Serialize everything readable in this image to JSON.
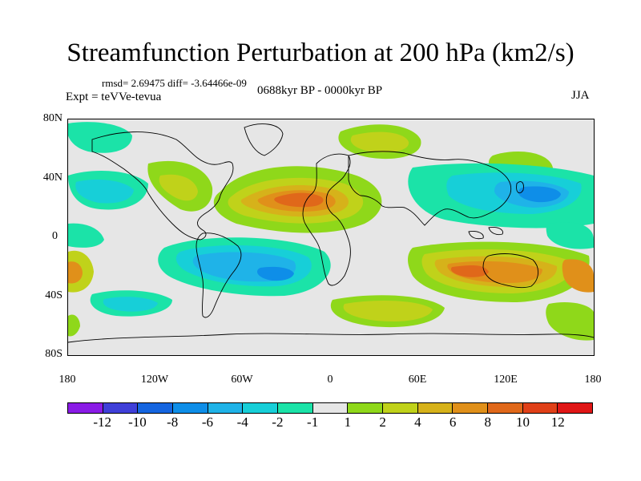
{
  "header": {
    "title": "Streamfunction Perturbation at 200 hPa (km2/s)",
    "stats": "rmsd= 2.69475 diff= -3.64466e-09",
    "experiment": "Expt = teVVe-tevua",
    "period": "0688kyr BP - 0000kyr BP",
    "season": "JJA"
  },
  "map": {
    "projection": "cylindrical-equidistant",
    "lat_labels": [
      "80N",
      "40N",
      "0",
      "40S",
      "80S"
    ],
    "lon_labels": [
      "180",
      "120W",
      "60W",
      "0",
      "60E",
      "120E",
      "180"
    ],
    "background_color": "#e6e6e6"
  },
  "colorbar": {
    "colors": [
      "#8a1be6",
      "#3f3fd8",
      "#1565e0",
      "#0e8ee8",
      "#1fb3e8",
      "#17cfd8",
      "#1be3a8",
      "#e6e6e6",
      "#8fd81a",
      "#c0d21a",
      "#d6b21a",
      "#e0901a",
      "#e0681a",
      "#e04018",
      "#e01616"
    ],
    "labels": [
      "-12",
      "-10",
      "-8",
      "-6",
      "-4",
      "-2",
      "-1",
      "1",
      "2",
      "4",
      "6",
      "8",
      "10",
      "12"
    ]
  }
}
